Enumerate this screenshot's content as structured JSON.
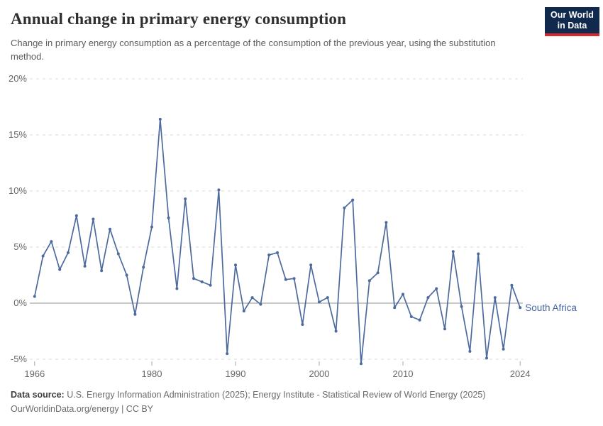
{
  "header": {
    "title": "Annual change in primary energy consumption",
    "subtitle": "Change in primary energy consumption as a percentage of the consumption of the previous year, using the substitution method.",
    "logo_line1": "Our World",
    "logo_line2": "in Data"
  },
  "footer": {
    "source_label": "Data source:",
    "source_text": " U.S. Energy Information Administration (2025); Energy Institute - Statistical Review of World Energy (2025)",
    "license_line": "OurWorldinData.org/energy | CC BY"
  },
  "colors": {
    "line": "#4c6a9e",
    "series_label_text": "#46659f",
    "grid": "#dadada",
    "zero_line": "#8f8f8f",
    "tick": "#a8a8a8",
    "axis_text": "#666666",
    "logo_bg": "#12294e",
    "logo_red": "#d12a2f"
  },
  "chart_data": {
    "type": "line",
    "title": "Annual change in primary energy consumption",
    "xlabel": "",
    "ylabel": "",
    "grid": "horizontal-dashed",
    "legend_position": "end-of-line-label",
    "xlim": [
      1965.4,
      2024.6
    ],
    "ylim": [
      -5.5,
      20
    ],
    "xticks": [
      1966,
      1980,
      1990,
      2000,
      2010,
      2024
    ],
    "xtick_labels": [
      "1966",
      "1980",
      "1990",
      "2000",
      "2010",
      "2024"
    ],
    "yticks": [
      -5,
      0,
      5,
      10,
      15,
      20
    ],
    "ytick_labels": [
      "-5%",
      "0%",
      "5%",
      "10%",
      "15%",
      "20%"
    ],
    "series": [
      {
        "name": "South Africa",
        "x": [
          1966,
          1967,
          1968,
          1969,
          1970,
          1971,
          1972,
          1973,
          1974,
          1975,
          1976,
          1977,
          1978,
          1979,
          1980,
          1981,
          1982,
          1983,
          1984,
          1985,
          1986,
          1987,
          1988,
          1989,
          1990,
          1991,
          1992,
          1993,
          1994,
          1995,
          1996,
          1997,
          1998,
          1999,
          2000,
          2001,
          2002,
          2003,
          2004,
          2005,
          2006,
          2007,
          2008,
          2009,
          2010,
          2011,
          2012,
          2013,
          2014,
          2015,
          2016,
          2017,
          2018,
          2019,
          2020,
          2021,
          2022,
          2023,
          2024
        ],
        "values": [
          0.6,
          4.2,
          5.5,
          3.0,
          4.5,
          7.8,
          3.3,
          7.5,
          2.9,
          6.6,
          4.4,
          2.5,
          -1.0,
          3.2,
          6.8,
          16.4,
          7.6,
          1.3,
          9.3,
          2.2,
          1.9,
          1.6,
          10.1,
          -4.5,
          3.4,
          -0.7,
          0.5,
          -0.1,
          4.3,
          4.5,
          2.1,
          2.2,
          -1.9,
          3.4,
          0.1,
          0.5,
          -2.5,
          8.5,
          9.2,
          -5.4,
          2.0,
          2.7,
          7.2,
          -0.4,
          0.8,
          -1.2,
          -1.5,
          0.5,
          1.3,
          -2.3,
          4.6,
          -0.3,
          -4.3,
          4.4,
          -4.9,
          0.5,
          -4.1,
          1.6,
          -0.4
        ]
      }
    ]
  }
}
